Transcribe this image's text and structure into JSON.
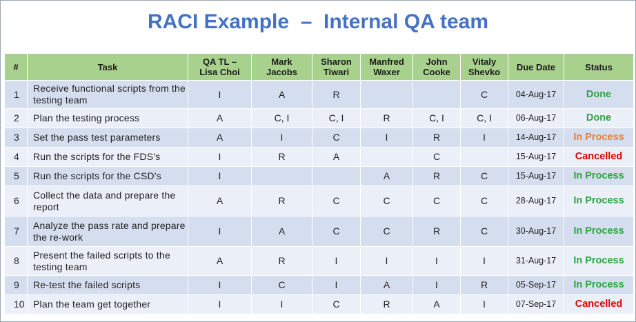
{
  "title": "RACI Example  –  Internal QA team",
  "headers": [
    "#",
    "Task",
    "QA TL –\nLisa Choi",
    "Mark\nJacobs",
    "Sharon\nTiwari",
    "Manfred\nWaxer",
    "John\nCooke",
    "Vitaly\nShevko",
    "Due Date",
    "Status"
  ],
  "rows": [
    {
      "num": "1",
      "task": "Receive functional scripts from the testing team",
      "qa_tl": "I",
      "mark": "A",
      "sharon": "R",
      "manfred": "",
      "john": "",
      "vitaly": "C",
      "due": "04-Aug-17",
      "status": "Done"
    },
    {
      "num": "2",
      "task": "Plan the testing process",
      "qa_tl": "A",
      "mark": "C, I",
      "sharon": "C, I",
      "manfred": "R",
      "john": "C, I",
      "vitaly": "C, I",
      "due": "06-Aug-17",
      "status": "Done"
    },
    {
      "num": "3",
      "task": "Set the pass test parameters",
      "qa_tl": "A",
      "mark": "I",
      "sharon": "C",
      "manfred": "I",
      "john": "R",
      "vitaly": "I",
      "due": "14-Aug-17",
      "status": "In Process"
    },
    {
      "num": "4",
      "task": "Run the scripts for the FDS's",
      "qa_tl": "I",
      "mark": "R",
      "sharon": "A",
      "manfred": "",
      "john": "C",
      "vitaly": "",
      "due": "15-Aug-17",
      "status": "Cancelled"
    },
    {
      "num": "5",
      "task": "Run the scripts for the CSD's",
      "qa_tl": "I",
      "mark": "",
      "sharon": "",
      "manfred": "A",
      "john": "R",
      "vitaly": "C",
      "due": "15-Aug-17",
      "status": "In Process"
    },
    {
      "num": "6",
      "task": "Collect the data and prepare the report",
      "qa_tl": "A",
      "mark": "R",
      "sharon": "C",
      "manfred": "C",
      "john": "C",
      "vitaly": "C",
      "due": "28-Aug-17",
      "status": "In Process"
    },
    {
      "num": "7",
      "task": "Analyze the pass rate and prepare the re-work",
      "qa_tl": "I",
      "mark": "A",
      "sharon": "C",
      "manfred": "C",
      "john": "R",
      "vitaly": "C",
      "due": "30-Aug-17",
      "status": "In Process"
    },
    {
      "num": "8",
      "task": "Present the failed scripts to the testing team",
      "qa_tl": "A",
      "mark": "R",
      "sharon": "I",
      "manfred": "I",
      "john": "I",
      "vitaly": "I",
      "due": "31-Aug-17",
      "status": "In Process"
    },
    {
      "num": "9",
      "task": "Re-test the failed scripts",
      "qa_tl": "I",
      "mark": "C",
      "sharon": "I",
      "manfred": "A",
      "john": "I",
      "vitaly": "R",
      "due": "05-Sep-17",
      "status": "In Process"
    },
    {
      "num": "10",
      "task": "Plan the team get together",
      "qa_tl": "I",
      "mark": "I",
      "sharon": "C",
      "manfred": "R",
      "john": "A",
      "vitaly": "I",
      "due": "07-Sep-17",
      "status": "Cancelled"
    }
  ],
  "colors": {
    "title": "#4472c4",
    "header_bg": "#a9d18e",
    "row_odd": "#d5deee",
    "row_even": "#ebeff8",
    "status_done": "#2aa640",
    "status_in_process_row3": "#ed7d31",
    "status_in_process": "#2aa640",
    "status_cancelled": "#e30000"
  }
}
